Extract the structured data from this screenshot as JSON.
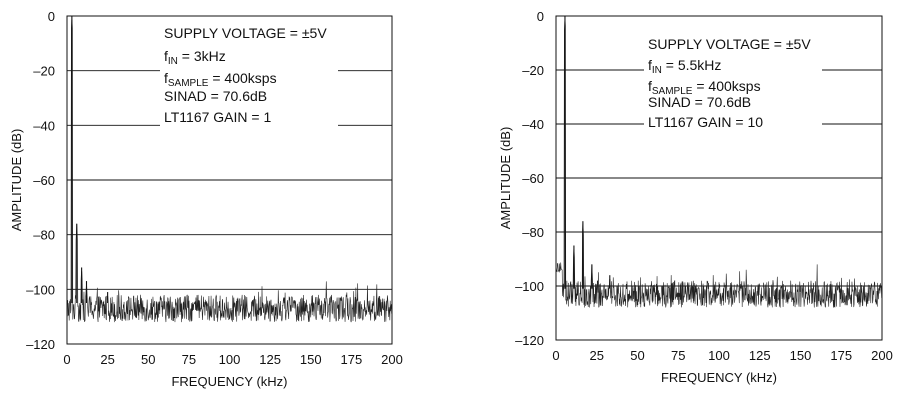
{
  "chart_data": [
    {
      "type": "line",
      "xlabel": "FREQUENCY (kHz)",
      "ylabel": "AMPLITUDE (dB)",
      "xlim": [
        0,
        200
      ],
      "ylim": [
        -120,
        0
      ],
      "x_ticks": [
        "0",
        "25",
        "50",
        "75",
        "100",
        "125",
        "150",
        "175",
        "200"
      ],
      "y_ticks": [
        "0",
        "–20",
        "–40",
        "–60",
        "–80",
        "–100",
        "–120"
      ],
      "grid": "horizontal",
      "annotations": {
        "supply": "SUPPLY VOLTAGE = ±5V",
        "fin_prefix": "f",
        "fin_sub": "IN",
        "fin_value": " = 3kHz",
        "fs_prefix": "f",
        "fs_sub": "SAMPLE",
        "fs_value": " = 400ksps",
        "sinad": "SINAD = 70.6dB",
        "gain": "LT1167 GAIN = 1"
      },
      "noise_floor_db": -107,
      "peaks": [
        {
          "x": 3,
          "y": 0
        },
        {
          "x": 6,
          "y": -76
        },
        {
          "x": 9,
          "y": -92
        },
        {
          "x": 12,
          "y": -97
        },
        {
          "x": 25,
          "y": -101
        }
      ]
    },
    {
      "type": "line",
      "xlabel": "FREQUENCY (kHz)",
      "ylabel": "AMPLITUDE (dB)",
      "xlim": [
        0,
        200
      ],
      "ylim": [
        -120,
        0
      ],
      "x_ticks": [
        "0",
        "25",
        "50",
        "75",
        "100",
        "125",
        "150",
        "175",
        "200"
      ],
      "y_ticks": [
        "0",
        "–20",
        "–40",
        "–60",
        "–80",
        "–100",
        "–120"
      ],
      "grid": "horizontal",
      "annotations": {
        "supply": "SUPPLY VOLTAGE = ±5V",
        "fin_prefix": "f",
        "fin_sub": "IN",
        "fin_value": " = 5.5kHz",
        "fs_prefix": "f",
        "fs_sub": "SAMPLE",
        "fs_value": " = 400ksps",
        "sinad": "SINAD = 70.6dB",
        "gain": "LT1167 GAIN = 10"
      },
      "noise_floor_db": -103,
      "peaks": [
        {
          "x": 5.5,
          "y": 0
        },
        {
          "x": 11,
          "y": -85
        },
        {
          "x": 16.5,
          "y": -76
        },
        {
          "x": 22,
          "y": -92
        },
        {
          "x": 33,
          "y": -96
        }
      ]
    }
  ]
}
